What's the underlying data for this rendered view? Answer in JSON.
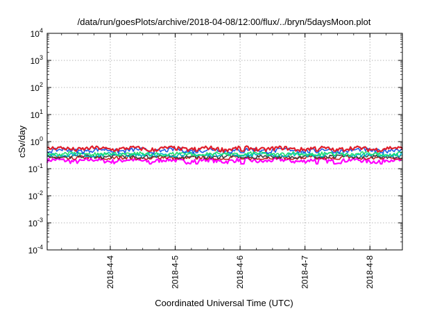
{
  "chart_data": {
    "type": "line",
    "title": "/data/run/goesPlots/archive/2018-04-08/12:00/flux/../bryn/5daysMoon.plot",
    "xlabel": "Coordinated Universal Time (UTC)",
    "ylabel": "cSv/day",
    "yscale": "log",
    "ylim": [
      0.0001,
      10000
    ],
    "xlim": [
      "2018-04-03 00:40",
      "2018-04-08 12:00"
    ],
    "grid": true,
    "y_ticks": [
      {
        "base": "10",
        "exp": "-4"
      },
      {
        "base": "10",
        "exp": "-3"
      },
      {
        "base": "10",
        "exp": "-2"
      },
      {
        "base": "10",
        "exp": "-1"
      },
      {
        "base": "10",
        "exp": "0"
      },
      {
        "base": "10",
        "exp": "1"
      },
      {
        "base": "10",
        "exp": "2"
      },
      {
        "base": "10",
        "exp": "3"
      },
      {
        "base": "10",
        "exp": "4"
      }
    ],
    "x_ticks": [
      {
        "label": "2018-4-4",
        "date": "2018-04-04"
      },
      {
        "label": "2018-4-5",
        "date": "2018-04-05"
      },
      {
        "label": "2018-4-6",
        "date": "2018-04-06"
      },
      {
        "label": "2018-4-7",
        "date": "2018-04-07"
      },
      {
        "label": "2018-4-8",
        "date": "2018-04-08"
      }
    ],
    "series": [
      {
        "color": "#ff00ff",
        "values_range": [
          0.13,
          0.26
        ],
        "typical": 0.2
      },
      {
        "color": "#c81e1e",
        "values_range": [
          0.22,
          0.3
        ],
        "typical": 0.25
      },
      {
        "color": "#404040",
        "values_range": [
          0.24,
          0.32
        ],
        "typical": 0.28
      },
      {
        "color": "#00b4c8",
        "values_range": [
          0.28,
          0.4
        ],
        "typical": 0.33
      },
      {
        "color": "#20e070",
        "values_range": [
          0.3,
          0.42
        ],
        "typical": 0.35
      },
      {
        "color": "#1e5ae6",
        "values_range": [
          0.35,
          0.65
        ],
        "typical": 0.48
      },
      {
        "color": "#e01e2a",
        "values_range": [
          0.4,
          0.7
        ],
        "typical": 0.55
      }
    ]
  }
}
